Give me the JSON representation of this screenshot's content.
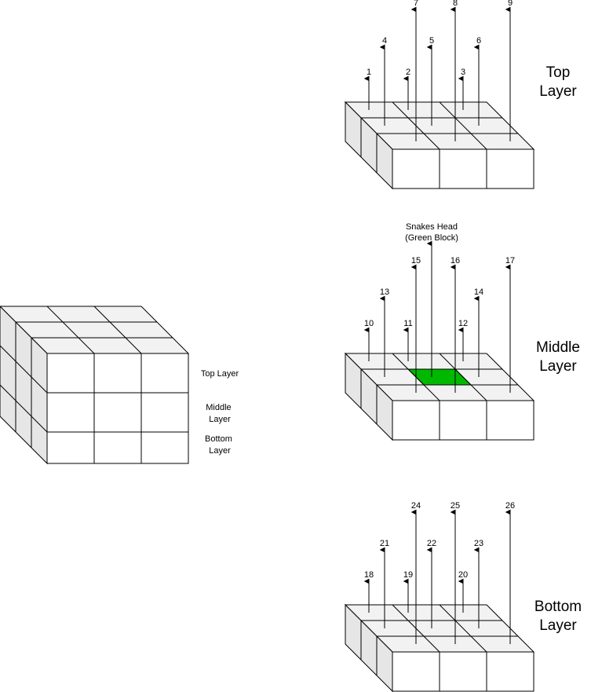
{
  "cube": {
    "labels": {
      "top": "Top Layer",
      "middle": [
        "Middle",
        "Layer"
      ],
      "bottom": [
        "Bottom",
        "Layer"
      ]
    }
  },
  "layers": [
    {
      "id": "top",
      "title": [
        "Top",
        "Layer"
      ],
      "numbers": [
        "1",
        "2",
        "3",
        "4",
        "5",
        "6",
        "7",
        "8",
        "9"
      ],
      "highlight": null
    },
    {
      "id": "middle",
      "title": [
        "Middle",
        "Layer"
      ],
      "numbers": [
        "10",
        "11",
        "12",
        "13",
        "14",
        "15",
        "16",
        "17"
      ],
      "head_label": [
        "Snakes Head",
        "(Green Block)"
      ],
      "highlight": "center"
    },
    {
      "id": "bottom",
      "title": [
        "Bottom",
        "Layer"
      ],
      "numbers": [
        "18",
        "19",
        "20",
        "21",
        "22",
        "23",
        "24",
        "25",
        "26"
      ],
      "highlight": null
    }
  ],
  "colors": {
    "line": "#000000",
    "face_top": "#f2f2f2",
    "face_side": "#e6e6e6",
    "face_front": "#ffffff",
    "head": "#00b800"
  }
}
